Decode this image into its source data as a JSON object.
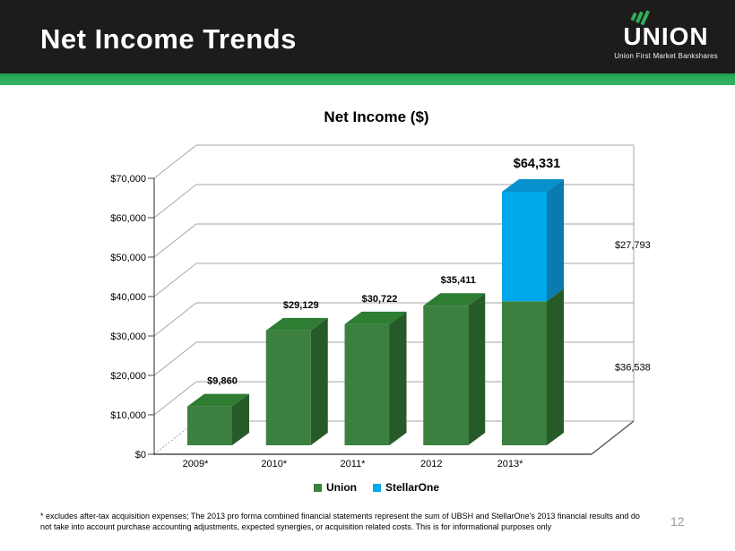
{
  "header": {
    "title": "Net Income Trends",
    "logo": {
      "name": "UNION",
      "tagline": "Union First Market Bankshares"
    }
  },
  "chart_data": {
    "type": "bar",
    "subtype": "3d-stacked-column",
    "title": "Net Income ($)",
    "categories": [
      "2009*",
      "2010*",
      "2011*",
      "2012",
      "2013*"
    ],
    "series": [
      {
        "name": "Union",
        "color": "#3c8040",
        "color_top": "#2e7d33",
        "color_side": "#275a29",
        "values": [
          9860,
          29129,
          30722,
          35411,
          36538
        ]
      },
      {
        "name": "StellarOne",
        "color": "#00a9e9",
        "color_top": "#0991ce",
        "color_side": "#0a7aaf",
        "values": [
          0,
          0,
          0,
          0,
          27793
        ]
      }
    ],
    "data_labels": [
      "$9,860",
      "$29,129",
      "$30,722",
      "$35,411",
      "$64,331"
    ],
    "segment_labels_2013": {
      "StellarOne": "$27,793",
      "Union": "$36,538"
    },
    "y_ticks": [
      "$0",
      "$10,000",
      "$20,000",
      "$30,000",
      "$40,000",
      "$50,000",
      "$60,000",
      "$70,000"
    ],
    "ylim": [
      0,
      70000
    ],
    "y_step": 10000,
    "grid": true,
    "legend_position": "bottom",
    "gridline_color": "#a6a6a6",
    "axis_color": "#4a4a4a"
  },
  "footnote": {
    "line1": "* excludes after-tax acquisition expenses; The 2013 pro forma combined financial statements represent the sum of UBSH and StellarOne's 2013 financial results and do",
    "line2": "not take into account purchase accounting adjustments, expected synergies, or acquisition related costs.  This is for informational purposes only"
  },
  "footer": {
    "page_number": "12"
  }
}
